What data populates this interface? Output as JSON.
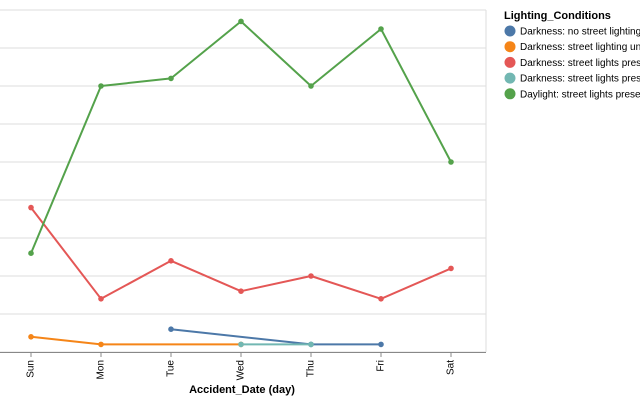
{
  "chart_data": {
    "type": "line",
    "title": "",
    "xlabel": "Accident_Date (day)",
    "ylabel": "",
    "categories": [
      "Sun",
      "Mon",
      "Tue",
      "Wed",
      "Thu",
      "Fri",
      "Sat"
    ],
    "ylim": [
      0,
      9
    ],
    "grid": true,
    "legend": {
      "title": "Lighting_Conditions",
      "placement": "right"
    },
    "series": [
      {
        "name": "Darkness: no street lighting",
        "color": "#4c78a8",
        "values": [
          null,
          null,
          0.6,
          null,
          0.2,
          0.2,
          null
        ]
      },
      {
        "name": "Darkness: street lighting unknown",
        "color": "#f58518",
        "values": [
          0.4,
          0.2,
          null,
          0.2,
          null,
          null,
          null
        ]
      },
      {
        "name": "Darkness: street lights present and lit",
        "color": "#e45756",
        "values": [
          3.8,
          1.4,
          2.4,
          1.6,
          2.0,
          1.4,
          2.2
        ]
      },
      {
        "name": "Darkness: street lights present but unlit",
        "color": "#72b7b2",
        "values": [
          null,
          null,
          null,
          0.2,
          0.2,
          null,
          null
        ]
      },
      {
        "name": "Daylight: street lights present",
        "color": "#54a24b",
        "values": [
          2.6,
          7.0,
          7.2,
          8.7,
          7.0,
          8.5,
          5.0
        ]
      }
    ]
  }
}
